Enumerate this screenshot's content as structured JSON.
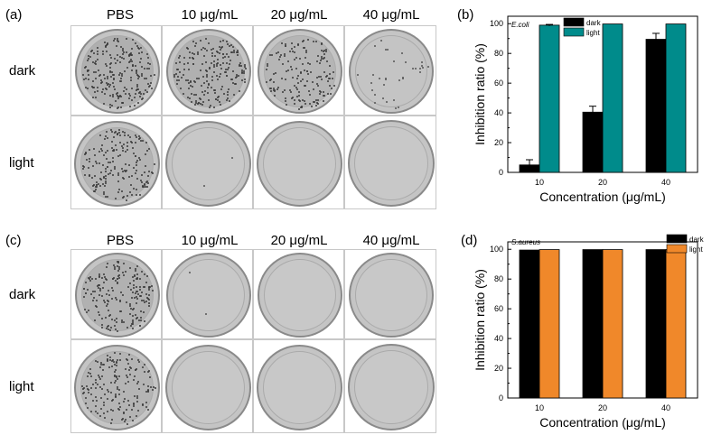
{
  "panels": {
    "a": {
      "letter": "(a)"
    },
    "b": {
      "letter": "(b)"
    },
    "c": {
      "letter": "(c)"
    },
    "d": {
      "letter": "(d)"
    }
  },
  "plates_a": {
    "columns": [
      "PBS",
      "10 μg/mL",
      "20 μg/mL",
      "40 μg/mL"
    ],
    "rows": [
      "dark",
      "light"
    ],
    "colony_level": [
      [
        1.0,
        0.95,
        0.75,
        0.15
      ],
      [
        0.85,
        0.01,
        0.0,
        0.0
      ]
    ]
  },
  "plates_c": {
    "columns": [
      "PBS",
      "10 μg/mL",
      "20 μg/mL",
      "40 μg/mL"
    ],
    "rows": [
      "dark",
      "light"
    ],
    "colony_level": [
      [
        0.9,
        0.01,
        0.0,
        0.0
      ],
      [
        0.8,
        0.0,
        0.0,
        0.0
      ]
    ]
  },
  "colors": {
    "dark": "#000000",
    "light_b": "#008b8b",
    "light_d": "#f0882a"
  },
  "chart_data": [
    {
      "type": "bar",
      "organism": "E.coli",
      "categories": [
        "10",
        "20",
        "40"
      ],
      "series": [
        {
          "name": "dark",
          "values": [
            5,
            40.5,
            89.5
          ],
          "errors": [
            3.5,
            4,
            4
          ]
        },
        {
          "name": "light",
          "values": [
            99,
            99.8,
            99.8
          ],
          "errors": [
            0.5,
            0,
            0
          ]
        }
      ],
      "xlabel": "Concentration (μg/mL)",
      "ylabel": "Inhibition ratio (%)",
      "ylim": [
        0,
        105
      ],
      "yticks": [
        "0",
        "20",
        "40",
        "60",
        "80",
        "100"
      ],
      "legend": "top-center",
      "grid": false
    },
    {
      "type": "bar",
      "organism": "S.aureus",
      "categories": [
        "10",
        "20",
        "40"
      ],
      "series": [
        {
          "name": "dark",
          "values": [
            99.5,
            99.8,
            99.8
          ],
          "errors": [
            0,
            0,
            0
          ]
        },
        {
          "name": "light",
          "values": [
            99.8,
            99.8,
            99.8
          ],
          "errors": [
            0,
            0,
            0
          ]
        }
      ],
      "xlabel": "Concentration (μg/mL)",
      "ylabel": "Inhibition ratio (%)",
      "ylim": [
        0,
        105
      ],
      "yticks": [
        "0",
        "20",
        "40",
        "60",
        "80",
        "100"
      ],
      "legend": "top-right",
      "grid": false
    }
  ]
}
